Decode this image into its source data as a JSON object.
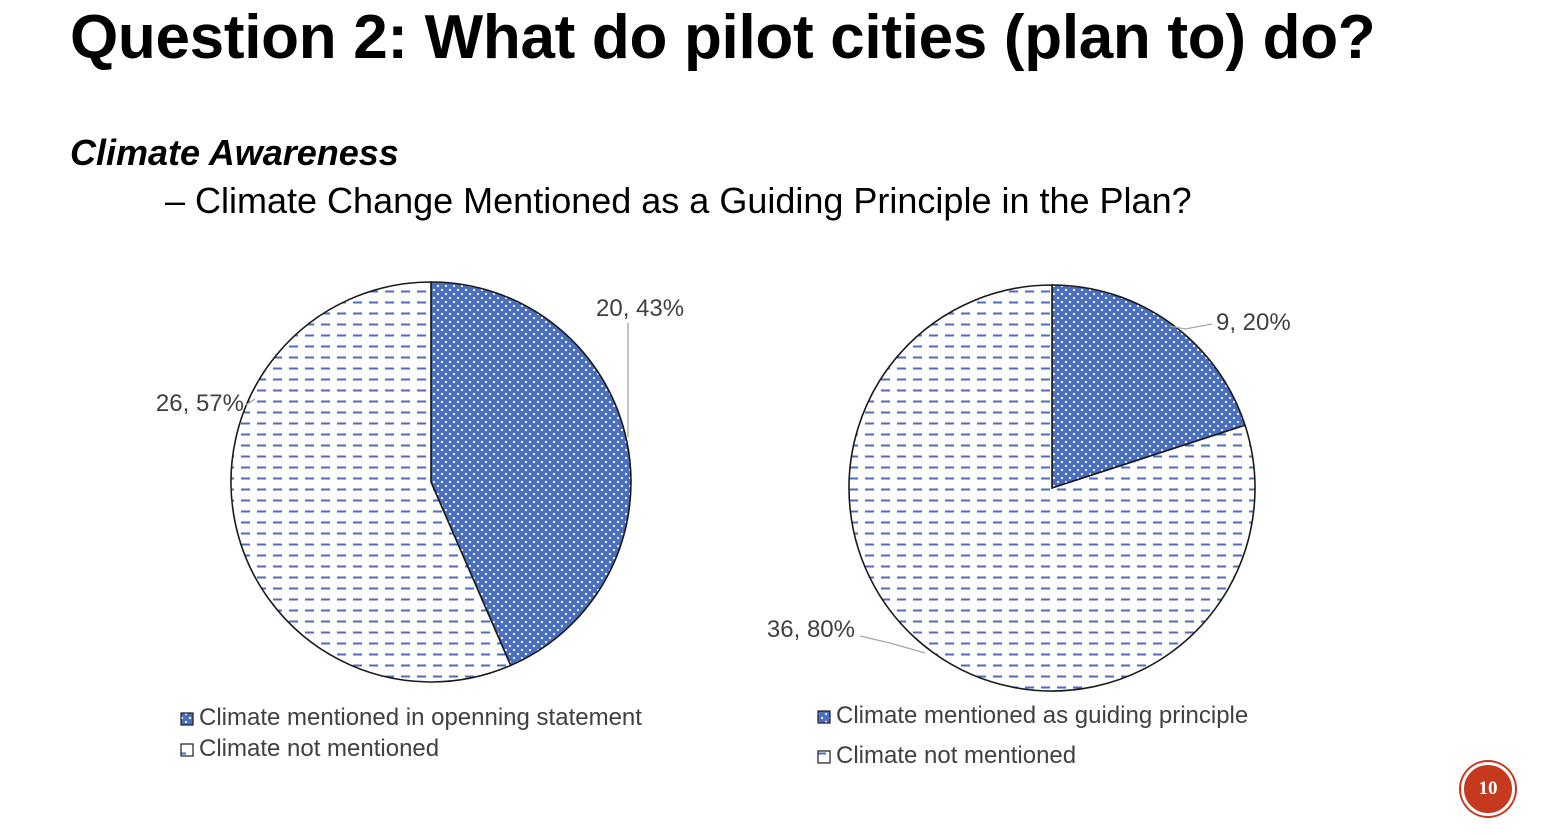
{
  "slide": {
    "title": "Question 2: What do pilot cities (plan to) do?",
    "subtitle": "Climate Awareness",
    "subline": "– Climate Change Mentioned as a Guiding Principle in the Plan?",
    "page_number": "10"
  },
  "colors": {
    "accent": "#4a6fc1",
    "badge": "#c53a1e"
  },
  "chart_data": [
    {
      "type": "pie",
      "slices": [
        {
          "label": "Climate mentioned in openning statement",
          "value": 20,
          "percent": 43,
          "data_label": "20, 43%",
          "pattern": "dots"
        },
        {
          "label": "Climate not mentioned",
          "value": 26,
          "percent": 57,
          "data_label": "26, 57%",
          "pattern": "dashes"
        }
      ],
      "legend": "bottom"
    },
    {
      "type": "pie",
      "slices": [
        {
          "label": "Climate mentioned as guiding principle",
          "value": 9,
          "percent": 20,
          "data_label": "9, 20%",
          "pattern": "dots"
        },
        {
          "label": "Climate not mentioned",
          "value": 36,
          "percent": 80,
          "data_label": "36, 80%",
          "pattern": "dashes"
        }
      ],
      "legend": "bottom"
    }
  ]
}
